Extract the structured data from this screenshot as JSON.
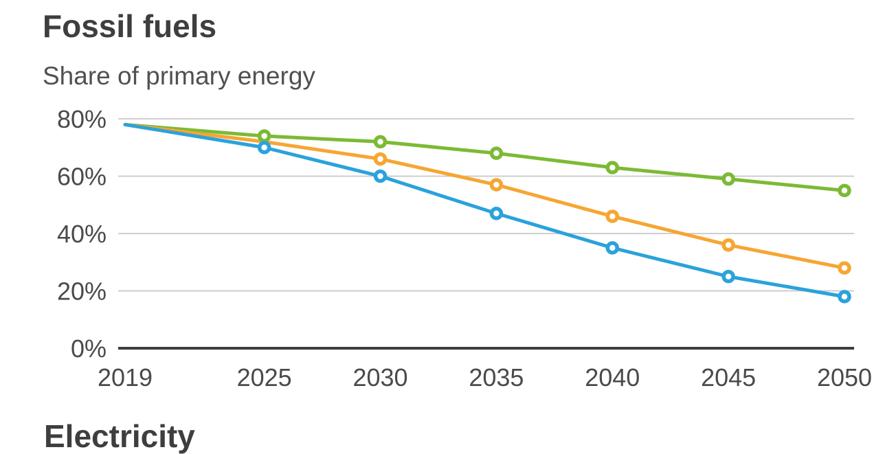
{
  "header": {
    "title": "Fossil fuels",
    "subtitle": "Share of primary energy"
  },
  "next_chart": {
    "partial_title": "Electricity"
  },
  "chart_data": {
    "type": "line",
    "title": "Fossil fuels",
    "subtitle": "Share of primary energy",
    "x": [
      2019,
      2025,
      2030,
      2035,
      2040,
      2045,
      2050
    ],
    "x_tick_labels": [
      "2019",
      "2025",
      "2030",
      "2035",
      "2040",
      "2045",
      "2050"
    ],
    "y_ticks": [
      0,
      20,
      40,
      60,
      80
    ],
    "y_tick_labels": [
      "0%",
      "20%",
      "40%",
      "60%",
      "80%"
    ],
    "ylim": [
      0,
      80
    ],
    "unit": "%",
    "grid": "horizontal",
    "legend": "none",
    "series": [
      {
        "id": "green",
        "color": "#7CBA35",
        "values": [
          78,
          74,
          72,
          68,
          63,
          59,
          55
        ],
        "marker_years": [
          2025,
          2030,
          2035,
          2040,
          2045,
          2050
        ]
      },
      {
        "id": "orange",
        "color": "#F6A632",
        "values": [
          78,
          72,
          66,
          57,
          46,
          36,
          28
        ],
        "marker_years": [
          2030,
          2035,
          2040,
          2045,
          2050
        ]
      },
      {
        "id": "blue",
        "color": "#2BA2DB",
        "values": [
          78,
          70,
          60,
          47,
          35,
          25,
          18
        ],
        "marker_years": [
          2025,
          2030,
          2035,
          2040,
          2045,
          2050
        ]
      }
    ],
    "colors": {
      "grid": "#C8C8C8",
      "axis": "#3D3D3D",
      "tick_text": "#4A4A4A"
    }
  }
}
